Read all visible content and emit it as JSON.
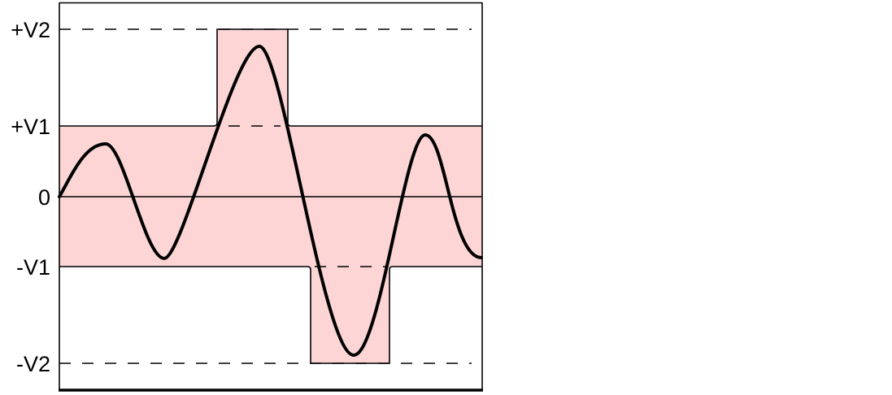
{
  "diagram": {
    "levels": [
      {
        "key": "pos_v2",
        "label": "+V2"
      },
      {
        "key": "pos_v1",
        "label": "+V1"
      },
      {
        "key": "zero",
        "label": "0"
      },
      {
        "key": "neg_v1",
        "label": "-V1"
      },
      {
        "key": "neg_v2",
        "label": "-V2"
      }
    ],
    "colors": {
      "band_fill": "#fdd5d5",
      "line": "#000000",
      "background": "#ffffff"
    }
  }
}
